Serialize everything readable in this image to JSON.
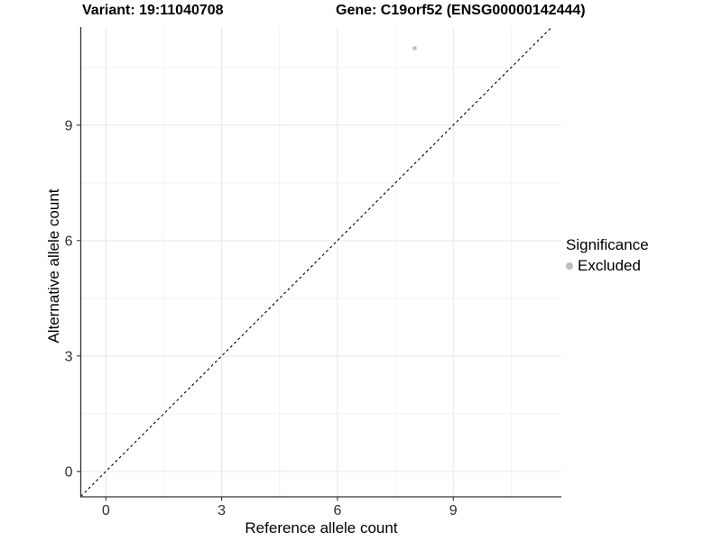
{
  "chart_data": {
    "type": "scatter",
    "titles": {
      "variant": "Variant: 19:11040708",
      "gene": "Gene: C19orf52 (ENSG00000142444)"
    },
    "xlabel": "Reference allele count",
    "ylabel": "Alternative allele count",
    "xlim": [
      -0.65,
      11.8
    ],
    "ylim": [
      -0.66,
      11.55
    ],
    "x_major_ticks": [
      0,
      3,
      6,
      9
    ],
    "y_major_ticks": [
      0,
      3,
      6,
      9
    ],
    "x_minor_ticks": [
      1.5,
      4.5,
      7.5,
      10.5
    ],
    "y_minor_ticks": [
      1.5,
      4.5,
      7.5,
      10.5
    ],
    "grid": true,
    "identity_line": {
      "slope": 1,
      "intercept": 0,
      "style": "dashed"
    },
    "points": [
      {
        "x": 8,
        "y": 11,
        "significance": "Excluded"
      }
    ],
    "legend": {
      "title": "Significance",
      "position": "right",
      "entries": [
        {
          "label": "Excluded",
          "color": "#bebebe"
        }
      ]
    },
    "colors": {
      "grid_major": "#e7e7e7",
      "grid_minor": "#f3f3f3",
      "axis_line": "#333333",
      "tick_mark": "#333333",
      "tick_text": "#303030",
      "title_text": "#000000",
      "identity_line": "#000000",
      "point": "#bebebe"
    }
  }
}
